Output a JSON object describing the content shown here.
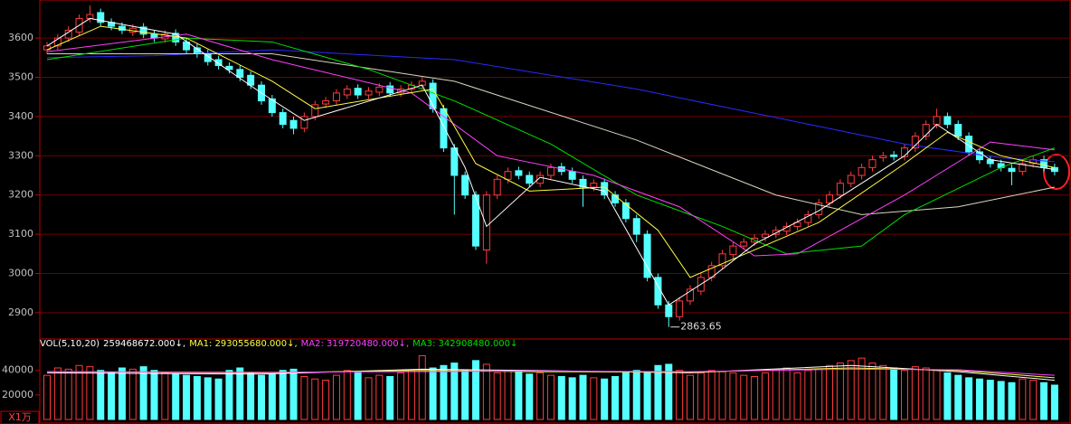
{
  "chart_data": {
    "type": "candlestick",
    "ylim": [
      2833,
      3697
    ],
    "yticks": [
      2900,
      3000,
      3100,
      3200,
      3300,
      3400,
      3500,
      3600
    ],
    "candles": {
      "open": [
        3570,
        3580,
        3600,
        3615,
        3650,
        3665,
        3640,
        3630,
        3615,
        3628,
        3610,
        3598,
        3612,
        3590,
        3575,
        3560,
        3545,
        3528,
        3520,
        3505,
        3480,
        3445,
        3410,
        3390,
        3370,
        3400,
        3432,
        3440,
        3455,
        3472,
        3455,
        3462,
        3478,
        3460,
        3470,
        3480,
        3485,
        3420,
        3320,
        3250,
        3200,
        3060,
        3200,
        3240,
        3262,
        3250,
        3230,
        3250,
        3272,
        3260,
        3240,
        3220,
        3232,
        3200,
        3180,
        3140,
        3100,
        2990,
        2920,
        2890,
        2930,
        2955,
        2990,
        3020,
        3048,
        3070,
        3080,
        3092,
        3100,
        3108,
        3120,
        3130,
        3150,
        3180,
        3200,
        3230,
        3250,
        3270,
        3295,
        3302,
        3298,
        3320,
        3350,
        3380,
        3400,
        3380,
        3350,
        3310,
        3290,
        3280,
        3268,
        3260,
        3280,
        3290,
        3270
      ],
      "high": [
        3590,
        3610,
        3630,
        3660,
        3683,
        3675,
        3650,
        3640,
        3635,
        3638,
        3620,
        3620,
        3622,
        3600,
        3585,
        3570,
        3555,
        3538,
        3530,
        3515,
        3490,
        3455,
        3420,
        3400,
        3410,
        3440,
        3450,
        3470,
        3480,
        3482,
        3475,
        3485,
        3488,
        3480,
        3490,
        3500,
        3495,
        3430,
        3330,
        3260,
        3210,
        3210,
        3250,
        3270,
        3272,
        3260,
        3260,
        3280,
        3282,
        3270,
        3250,
        3240,
        3242,
        3210,
        3190,
        3150,
        3110,
        3000,
        2930,
        2940,
        2970,
        3000,
        3030,
        3060,
        3080,
        3090,
        3100,
        3110,
        3120,
        3130,
        3140,
        3160,
        3190,
        3210,
        3240,
        3260,
        3280,
        3300,
        3310,
        3312,
        3330,
        3360,
        3390,
        3420,
        3410,
        3390,
        3360,
        3320,
        3300,
        3290,
        3278,
        3290,
        3300,
        3300,
        3280
      ],
      "low": [
        3560,
        3570,
        3590,
        3605,
        3640,
        3630,
        3620,
        3610,
        3605,
        3600,
        3590,
        3588,
        3580,
        3560,
        3550,
        3530,
        3520,
        3510,
        3490,
        3470,
        3430,
        3400,
        3370,
        3355,
        3360,
        3390,
        3422,
        3430,
        3445,
        3445,
        3445,
        3452,
        3450,
        3450,
        3460,
        3470,
        3410,
        3310,
        3150,
        3190,
        3060,
        3025,
        3190,
        3230,
        3240,
        3220,
        3220,
        3240,
        3250,
        3230,
        3170,
        3210,
        3190,
        3170,
        3130,
        3080,
        2980,
        2910,
        2863.65,
        2880,
        2920,
        2945,
        2980,
        3010,
        3038,
        3060,
        3070,
        3082,
        3090,
        3098,
        3110,
        3120,
        3140,
        3170,
        3190,
        3220,
        3240,
        3260,
        3285,
        3288,
        3288,
        3310,
        3340,
        3370,
        3370,
        3340,
        3300,
        3280,
        3270,
        3260,
        3225,
        3250,
        3270,
        3260,
        3250
      ],
      "close": [
        3580,
        3600,
        3620,
        3650,
        3660,
        3640,
        3630,
        3620,
        3625,
        3610,
        3600,
        3610,
        3590,
        3570,
        3560,
        3540,
        3530,
        3520,
        3500,
        3480,
        3440,
        3410,
        3380,
        3370,
        3400,
        3430,
        3440,
        3460,
        3470,
        3455,
        3465,
        3475,
        3460,
        3470,
        3480,
        3490,
        3420,
        3320,
        3250,
        3200,
        3070,
        3200,
        3240,
        3260,
        3250,
        3230,
        3250,
        3270,
        3260,
        3240,
        3220,
        3230,
        3200,
        3180,
        3140,
        3100,
        2990,
        2920,
        2890,
        2930,
        2960,
        2990,
        3020,
        3050,
        3070,
        3080,
        3090,
        3100,
        3110,
        3120,
        3130,
        3150,
        3180,
        3200,
        3230,
        3250,
        3270,
        3290,
        3300,
        3298,
        3320,
        3350,
        3380,
        3400,
        3380,
        3350,
        3310,
        3290,
        3280,
        3270,
        3260,
        3280,
        3290,
        3270,
        3260
      ]
    },
    "lines": [
      {
        "color": "#2a2aff",
        "x": [
          0,
          10,
          21,
          38,
          55,
          72,
          80,
          89,
          94
        ],
        "values": [
          3550,
          3555,
          3570,
          3545,
          3470,
          3375,
          3330,
          3295,
          3285
        ]
      },
      {
        "color": "#d8d8c0",
        "x": [
          0,
          21,
          38,
          55,
          68,
          76,
          85,
          94
        ],
        "values": [
          3560,
          3560,
          3490,
          3340,
          3200,
          3150,
          3170,
          3220
        ]
      },
      {
        "color": "#00e000",
        "x": [
          0,
          13,
          21,
          30,
          38,
          47,
          55,
          63,
          69,
          76,
          80,
          89,
          94
        ],
        "values": [
          3545,
          3600,
          3590,
          3520,
          3440,
          3330,
          3200,
          3120,
          3050,
          3070,
          3150,
          3270,
          3320
        ]
      },
      {
        "color": "#ff40ff",
        "x": [
          0,
          13,
          21,
          34,
          42,
          51,
          59,
          66,
          70,
          80,
          88,
          94
        ],
        "values": [
          3565,
          3610,
          3545,
          3460,
          3300,
          3250,
          3170,
          3045,
          3050,
          3200,
          3335,
          3315
        ]
      },
      {
        "color": "#ffff40",
        "x": [
          0,
          5,
          13,
          21,
          25,
          36,
          40,
          45,
          52,
          57,
          60,
          66,
          72,
          80,
          84,
          89,
          94
        ],
        "values": [
          3570,
          3630,
          3600,
          3490,
          3420,
          3470,
          3280,
          3210,
          3220,
          3110,
          2990,
          3060,
          3130,
          3280,
          3360,
          3300,
          3270
        ]
      },
      {
        "color": "#ffffff",
        "x": [
          0,
          4,
          12,
          20,
          24,
          35,
          39,
          41,
          46,
          52,
          58,
          62,
          66,
          72,
          80,
          83,
          88,
          94
        ],
        "values": [
          3580,
          3650,
          3610,
          3460,
          3390,
          3480,
          3270,
          3120,
          3245,
          3210,
          2920,
          2990,
          3075,
          3160,
          3300,
          3380,
          3290,
          3265
        ]
      }
    ],
    "low_label": "2863.65",
    "volume": {
      "ylim": [
        0,
        56000
      ],
      "yticks": [
        20000,
        40000
      ],
      "values": [
        36000,
        42000,
        41000,
        44000,
        43000,
        40000,
        38000,
        42000,
        41000,
        43000,
        40000,
        38000,
        37000,
        36000,
        35000,
        34000,
        33000,
        40000,
        42000,
        38000,
        36000,
        37000,
        40000,
        41000,
        35000,
        33000,
        32000,
        36000,
        40000,
        38000,
        34000,
        36000,
        35000,
        38000,
        40000,
        52000,
        42000,
        44000,
        46000,
        40000,
        48000,
        45000,
        38000,
        40000,
        39000,
        37000,
        38000,
        36000,
        35000,
        34000,
        36000,
        34000,
        33000,
        35000,
        38000,
        40000,
        39000,
        44000,
        45000,
        40000,
        36000,
        38000,
        40000,
        39000,
        38000,
        36000,
        35000,
        38000,
        40000,
        42000,
        38000,
        40000,
        41000,
        44000,
        46000,
        48000,
        50000,
        46000,
        44000,
        42000,
        40000,
        43000,
        42000,
        40000,
        38000,
        36000,
        34000,
        33000,
        32000,
        31000,
        30000,
        33000,
        32000,
        30000,
        28000
      ],
      "lines": [
        {
          "color": "#ffffff",
          "x": [
            0,
            20,
            35,
            45,
            60,
            75,
            85,
            94
          ],
          "values": [
            38000,
            37000,
            41000,
            40000,
            38000,
            44000,
            39000,
            32000
          ]
        },
        {
          "color": "#ffff40",
          "x": [
            0,
            20,
            35,
            45,
            60,
            75,
            85,
            94
          ],
          "values": [
            39000,
            38000,
            40000,
            39000,
            38500,
            42000,
            40000,
            34000
          ]
        },
        {
          "color": "#ff40ff",
          "x": [
            0,
            20,
            35,
            45,
            60,
            75,
            85,
            94
          ],
          "values": [
            39000,
            38500,
            39000,
            39500,
            39000,
            41000,
            40500,
            36000
          ]
        }
      ],
      "legend": [
        {
          "text": "VOL(5,10,20)",
          "color": "#ffffff"
        },
        {
          "text": "259468672.000↓,",
          "color": "#ffffff"
        },
        {
          "text": "MA1: 293055680.000↓,",
          "color": "#ffff40"
        },
        {
          "text": "MA2: 319720480.000↓,",
          "color": "#ff40ff"
        },
        {
          "text": "MA3: 342908480.000↓",
          "color": "#00e000"
        }
      ],
      "unit_label": "X1万"
    }
  }
}
